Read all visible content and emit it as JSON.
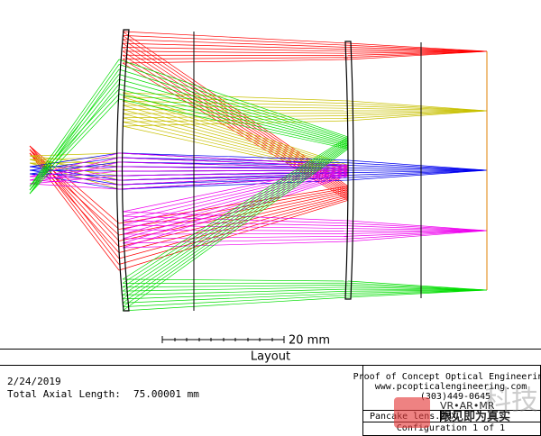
{
  "layout_plot": {
    "scale_label": "20 mm"
  },
  "title_bar": {
    "title": "Layout"
  },
  "info": {
    "date": "2/24/2019",
    "axial_length_label": "Total Axial Length:",
    "axial_length_value": "75.00001 mm"
  },
  "title_block": {
    "company": "Proof of Concept Optical Engineering",
    "website": "www.pcopticalengineering.com",
    "phone": "(303)449-0645",
    "file": "Pancake lens.ZMX",
    "configuration": "Configuration 1 of 1"
  },
  "watermark": {
    "tag": "VR•AR•MR",
    "slogan": "眼见即为真实",
    "brand": "科技"
  }
}
